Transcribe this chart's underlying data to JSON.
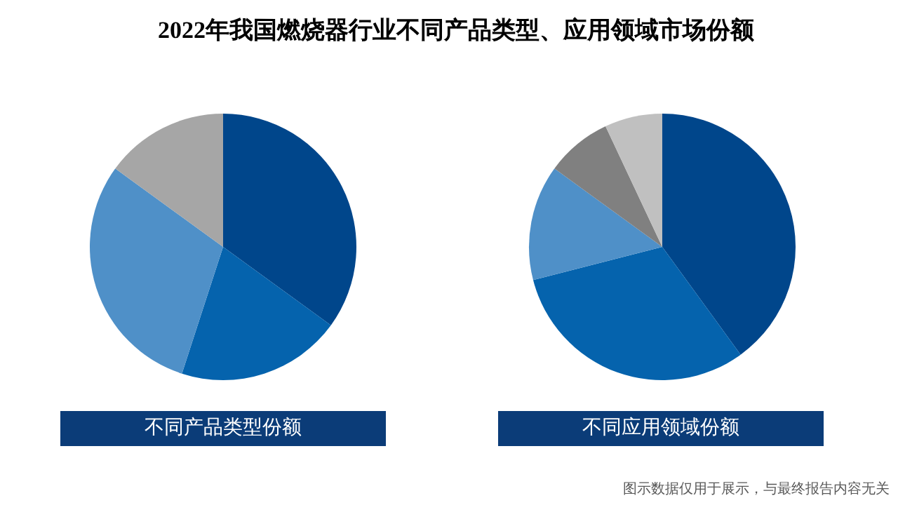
{
  "chart_data": [
    {
      "type": "pie",
      "title": "2022年我国燃烧器行业不同产品类型、应用领域市场份额",
      "xlabel": "不同产品类型份额",
      "categories": [
        null,
        null,
        null,
        null
      ],
      "values": [
        35,
        20,
        30,
        15
      ],
      "colors": [
        "#00468b",
        "#0563ad",
        "#4f90c8",
        "#a6a6a6"
      ]
    },
    {
      "type": "pie",
      "xlabel": "不同应用领域份额",
      "categories": [
        null,
        null,
        null,
        null,
        null
      ],
      "values": [
        40,
        31,
        14,
        8,
        7
      ],
      "colors": [
        "#00468b",
        "#0563ad",
        "#4f90c8",
        "#808080",
        "#c0c0c0"
      ],
      "annotations": [
        "图示数据仅用于展示，与最终报告内容无关"
      ]
    }
  ]
}
